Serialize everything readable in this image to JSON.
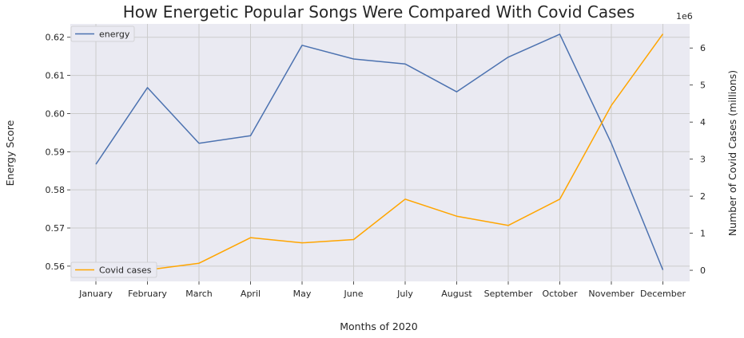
{
  "chart_data": {
    "type": "line",
    "title": "How Energetic Popular Songs Were Compared With Covid Cases",
    "xlabel": "Months of 2020",
    "ylabel_left": "Energy Score",
    "ylabel_right": "Number of Covid Cases (millions)",
    "right_offset_label": "1e6",
    "categories": [
      "January",
      "February",
      "March",
      "April",
      "May",
      "June",
      "July",
      "August",
      "September",
      "October",
      "November",
      "December"
    ],
    "series": [
      {
        "name": "energy",
        "axis": "left",
        "color": "#4c72b0",
        "values": [
          0.5867,
          0.6068,
          0.5922,
          0.5942,
          0.6179,
          0.6143,
          0.613,
          0.6057,
          0.6148,
          0.6208,
          0.5922,
          0.559
        ]
      },
      {
        "name": "Covid cases",
        "axis": "right",
        "color": "#ffa500",
        "values": [
          0,
          10000,
          190000,
          880000,
          740000,
          830000,
          1920000,
          1460000,
          1210000,
          1920000,
          4450000,
          6380000
        ]
      }
    ],
    "ylim_left": [
      0.556,
      0.6235
    ],
    "yticks_left": [
      0.56,
      0.57,
      0.58,
      0.59,
      0.6,
      0.61,
      0.62
    ],
    "ytick_labels_left": [
      "0.56",
      "0.57",
      "0.58",
      "0.59",
      "0.60",
      "0.61",
      "0.62"
    ],
    "ylim_right": [
      -300000,
      6650000
    ],
    "yticks_right": [
      0,
      1000000,
      2000000,
      3000000,
      4000000,
      5000000,
      6000000
    ],
    "ytick_labels_right": [
      "0",
      "1",
      "2",
      "3",
      "4",
      "5",
      "6"
    ],
    "legend_energy_position": "upper-left",
    "legend_covid_position": "lower-left",
    "grid": true,
    "background": "#eaeaf2",
    "grid_color": "#cccccc"
  }
}
